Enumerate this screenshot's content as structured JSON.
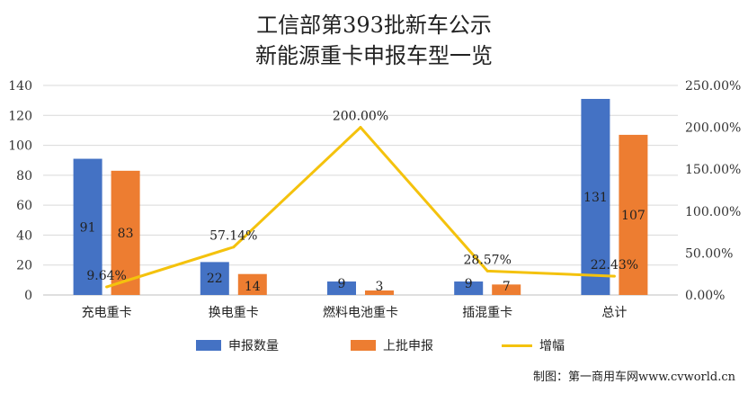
{
  "title_line1": "工信部第393批新车公示",
  "title_line2": "新能源重卡申报车型一览",
  "credit": "制图：第一商用车网www.cvworld.cn",
  "colors": {
    "bar1": "#4472C4",
    "bar2": "#ED7D31",
    "line": "#F4C20D",
    "grid": "#d9d9d9"
  },
  "chart_data": {
    "type": "bar",
    "categories": [
      "充电重卡",
      "换电重卡",
      "燃料电池重卡",
      "插混重卡",
      "总计"
    ],
    "series": [
      {
        "name": "申报数量",
        "type": "bar",
        "axis": "left",
        "values": [
          91,
          22,
          9,
          9,
          131
        ],
        "labels": [
          "91",
          "22",
          "9",
          "9",
          "131"
        ]
      },
      {
        "name": "上批申报",
        "type": "bar",
        "axis": "left",
        "values": [
          83,
          14,
          3,
          7,
          107
        ],
        "labels": [
          "83",
          "14",
          "3",
          "7",
          "107"
        ]
      },
      {
        "name": "增幅",
        "type": "line",
        "axis": "right",
        "values": [
          9.64,
          57.14,
          200.0,
          28.57,
          22.43
        ],
        "labels": [
          "9.64%",
          "57.14%",
          "200.00%",
          "28.57%",
          "22.43%"
        ]
      }
    ],
    "y_left": {
      "min": 0,
      "max": 140,
      "ticks": [
        "0",
        "20",
        "40",
        "60",
        "80",
        "100",
        "120",
        "140"
      ]
    },
    "y_right": {
      "min": 0,
      "max": 250,
      "ticks": [
        "0.00%",
        "50.00%",
        "100.00%",
        "150.00%",
        "200.00%",
        "250.00%"
      ]
    },
    "grid": true,
    "legend": "bottom"
  }
}
